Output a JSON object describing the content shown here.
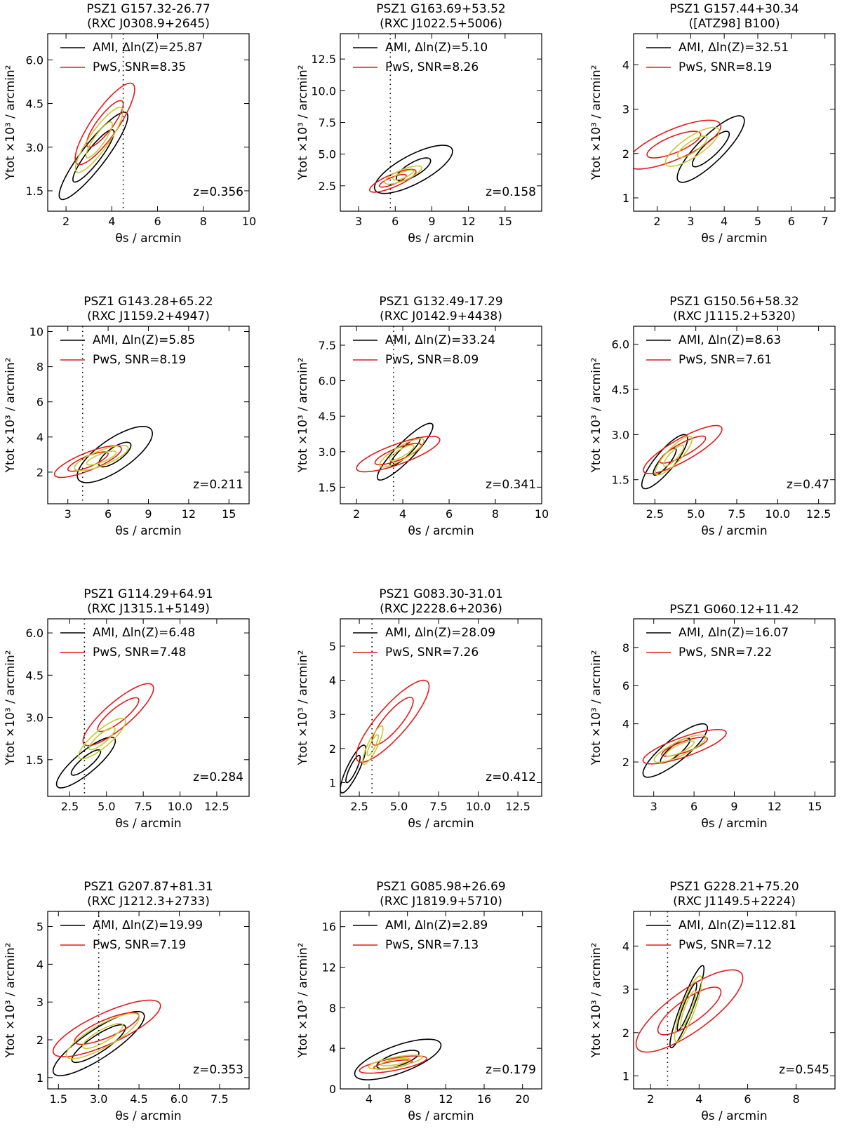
{
  "colors": {
    "ami": "#000000",
    "pws": "#e41a1c",
    "overlap": "#c8c832"
  },
  "chart_data": [
    {
      "type": "contour",
      "title": "PSZ1 G157.32-26.77",
      "subtitle": "(RXC J0308.9+2645)",
      "xlabel": "θs / arcmin",
      "ylabel": "Ytot ×10³ / arcmin²",
      "xlim": [
        1.2,
        10
      ],
      "ylim": [
        0.8,
        6.9
      ],
      "xticks": [
        2,
        4,
        6,
        8,
        10
      ],
      "xtick_labels": [
        "2",
        "4",
        "6",
        "8",
        "10"
      ],
      "yticks": [
        1.5,
        3.0,
        4.5,
        6.0
      ],
      "ytick_labels": [
        "1.5",
        "3.0",
        "4.5",
        "6.0"
      ],
      "legend": [
        "AMI, Δln(Z)=25.87",
        "PwS, SNR=8.35"
      ],
      "redshift": "z=0.356",
      "vline": 4.5,
      "ami": {
        "center": [
          3.2,
          2.7
        ],
        "outer": [
          1.5,
          1.5
        ],
        "inner": [
          0.9,
          0.9
        ],
        "rho": 0.9
      },
      "pws": {
        "center": [
          3.7,
          3.8
        ],
        "outer": [
          1.3,
          1.4
        ],
        "inner": [
          0.8,
          0.8
        ],
        "rho": 0.85
      }
    },
    {
      "type": "contour",
      "title": "PSZ1 G163.69+53.52",
      "subtitle": "(RXC J1022.5+5006)",
      "xlabel": "θs / arcmin",
      "ylabel": "Ytot ×10³ / arcmin²",
      "xlim": [
        1.5,
        18
      ],
      "ylim": [
        0.5,
        14.5
      ],
      "xticks": [
        3,
        6,
        9,
        12,
        15
      ],
      "xtick_labels": [
        "3",
        "6",
        "9",
        "12",
        "15"
      ],
      "yticks": [
        2.5,
        5.0,
        7.5,
        10.0,
        12.5
      ],
      "ytick_labels": [
        "2.5",
        "5.0",
        "7.5",
        "10.0",
        "12.5"
      ],
      "legend": [
        "AMI, Δln(Z)=5.10",
        "PwS, SNR=8.26"
      ],
      "redshift": "z=0.158",
      "vline": 5.6,
      "ami": {
        "center": [
          7.5,
          3.8
        ],
        "outer": [
          3.2,
          1.9
        ],
        "inner": [
          1.4,
          0.9
        ],
        "rho": 0.75
      },
      "pws": {
        "center": [
          5.8,
          2.9
        ],
        "outer": [
          1.9,
          0.9
        ],
        "inner": [
          1.1,
          0.5
        ],
        "rho": 0.8
      }
    },
    {
      "type": "contour",
      "title": "PSZ1 G157.44+30.34",
      "subtitle": "([ATZ98] B100)",
      "xlabel": "θs / arcmin",
      "ylabel": "Ytot ×10³ / arcmin²",
      "xlim": [
        1.3,
        7.3
      ],
      "ylim": [
        0.7,
        4.7
      ],
      "xticks": [
        2,
        3,
        4,
        5,
        6,
        7
      ],
      "xtick_labels": [
        "2",
        "3",
        "4",
        "5",
        "6",
        "7"
      ],
      "yticks": [
        1,
        2,
        3,
        4
      ],
      "ytick_labels": [
        "1",
        "2",
        "3",
        "4"
      ],
      "legend": [
        "AMI, Δln(Z)=32.51",
        "PwS, SNR=8.19"
      ],
      "redshift": "",
      "vline": null,
      "ami": {
        "center": [
          3.6,
          2.1
        ],
        "outer": [
          1.0,
          0.75
        ],
        "inner": [
          0.55,
          0.4
        ],
        "rho": 0.85
      },
      "pws": {
        "center": [
          2.5,
          2.2
        ],
        "outer": [
          1.4,
          0.55
        ],
        "inner": [
          0.8,
          0.3
        ],
        "rho": 0.75
      }
    },
    {
      "type": "contour",
      "title": "PSZ1 G143.28+65.22",
      "subtitle": "(RXC J1159.2+4947)",
      "xlabel": "θs / arcmin",
      "ylabel": "Ytot ×10³ / arcmin²",
      "xlim": [
        1.5,
        16.5
      ],
      "ylim": [
        0.2,
        10.3
      ],
      "xticks": [
        3,
        6,
        9,
        12,
        15
      ],
      "xtick_labels": [
        "3",
        "6",
        "9",
        "12",
        "15"
      ],
      "yticks": [
        2,
        4,
        6,
        8,
        10
      ],
      "ytick_labels": [
        "2",
        "4",
        "6",
        "8",
        "10"
      ],
      "legend": [
        "AMI, Δln(Z)=5.85",
        "PwS, SNR=8.19"
      ],
      "redshift": "z=0.211",
      "vline": 4.1,
      "ami": {
        "center": [
          6.5,
          3.0
        ],
        "outer": [
          2.8,
          1.6
        ],
        "inner": [
          1.2,
          0.7
        ],
        "rho": 0.75
      },
      "pws": {
        "center": [
          4.5,
          2.6
        ],
        "outer": [
          2.5,
          0.9
        ],
        "inner": [
          1.5,
          0.55
        ],
        "rho": 0.8
      }
    },
    {
      "type": "contour",
      "title": "PSZ1 G132.49-17.29",
      "subtitle": "(RXC J0142.9+4438)",
      "xlabel": "θs / arcmin",
      "ylabel": "Ytot ×10³ / arcmin²",
      "xlim": [
        1.3,
        10
      ],
      "ylim": [
        0.8,
        8.3
      ],
      "xticks": [
        2,
        4,
        6,
        8,
        10
      ],
      "xtick_labels": [
        "2",
        "4",
        "6",
        "8",
        "10"
      ],
      "yticks": [
        1.5,
        3.0,
        4.5,
        6.0,
        7.5
      ],
      "ytick_labels": [
        "1.5",
        "3.0",
        "4.5",
        "6.0",
        "7.5"
      ],
      "legend": [
        "AMI, Δln(Z)=33.24",
        "PwS, SNR=8.09"
      ],
      "redshift": "z=0.341",
      "vline": 3.6,
      "ami": {
        "center": [
          4.1,
          3.0
        ],
        "outer": [
          1.2,
          1.2
        ],
        "inner": [
          0.65,
          0.6
        ],
        "rho": 0.9
      },
      "pws": {
        "center": [
          3.8,
          2.9
        ],
        "outer": [
          1.8,
          0.75
        ],
        "inner": [
          1.0,
          0.45
        ],
        "rho": 0.8
      }
    },
    {
      "type": "contour",
      "title": "PSZ1 G150.56+58.32",
      "subtitle": "(RXC J1115.2+5320)",
      "xlabel": "θs / arcmin",
      "ylabel": "Ytot ×10³ / arcmin²",
      "xlim": [
        1.2,
        13.5
      ],
      "ylim": [
        0.7,
        6.6
      ],
      "xticks": [
        2.5,
        5.0,
        7.5,
        10.0,
        12.5
      ],
      "xtick_labels": [
        "2.5",
        "5.0",
        "7.5",
        "10.0",
        "12.5"
      ],
      "yticks": [
        1.5,
        3.0,
        4.5,
        6.0
      ],
      "ytick_labels": [
        "1.5",
        "3.0",
        "4.5",
        "6.0"
      ],
      "legend": [
        "AMI, Δln(Z)=8.63",
        "PwS, SNR=7.61"
      ],
      "redshift": "z=0.47",
      "vline": null,
      "ami": {
        "center": [
          3.1,
          2.1
        ],
        "outer": [
          1.4,
          0.9
        ],
        "inner": [
          0.7,
          0.45
        ],
        "rho": 0.85
      },
      "pws": {
        "center": [
          4.2,
          2.5
        ],
        "outer": [
          2.4,
          0.8
        ],
        "inner": [
          1.4,
          0.45
        ],
        "rho": 0.85
      }
    },
    {
      "type": "contour",
      "title": "PSZ1 G114.29+64.91",
      "subtitle": "(RXC J1315.1+5149)",
      "xlabel": "θs / arcmin",
      "ylabel": "Ytot ×10³ / arcmin²",
      "xlim": [
        1.0,
        14.7
      ],
      "ylim": [
        0.2,
        6.5
      ],
      "xticks": [
        2.5,
        5.0,
        7.5,
        10.0,
        12.5
      ],
      "xtick_labels": [
        "2.5",
        "5.0",
        "7.5",
        "10.0",
        "12.5"
      ],
      "yticks": [
        1.5,
        3.0,
        4.5,
        6.0
      ],
      "ytick_labels": [
        "1.5",
        "3.0",
        "4.5",
        "6.0"
      ],
      "legend": [
        "AMI, Δln(Z)=6.48",
        "PwS, SNR=7.48"
      ],
      "redshift": "z=0.284",
      "vline": 3.5,
      "ami": {
        "center": [
          3.6,
          1.4
        ],
        "outer": [
          2.0,
          0.9
        ],
        "inner": [
          1.0,
          0.45
        ],
        "rho": 0.85
      },
      "pws": {
        "center": [
          5.8,
          3.1
        ],
        "outer": [
          2.4,
          1.1
        ],
        "inner": [
          1.4,
          0.6
        ],
        "rho": 0.85
      }
    },
    {
      "type": "contour",
      "title": "PSZ1 G083.30-31.01",
      "subtitle": "(RXC J2228.6+2036)",
      "xlabel": "θs / arcmin",
      "ylabel": "Ytot ×10³ / arcmin²",
      "xlim": [
        1.3,
        14
      ],
      "ylim": [
        0.6,
        5.8
      ],
      "xticks": [
        2.5,
        5.0,
        7.5,
        10.0,
        12.5
      ],
      "xtick_labels": [
        "2.5",
        "5.0",
        "7.5",
        "10.0",
        "12.5"
      ],
      "yticks": [
        1,
        2,
        3,
        4,
        5
      ],
      "ytick_labels": [
        "1",
        "2",
        "3",
        "4",
        "5"
      ],
      "legend": [
        "AMI, Δln(Z)=28.09",
        "PwS, SNR=7.26"
      ],
      "redshift": "z=0.412",
      "vline": 3.3,
      "ami": {
        "center": [
          2.1,
          1.4
        ],
        "outer": [
          0.8,
          0.7
        ],
        "inner": [
          0.45,
          0.4
        ],
        "rho": 0.85
      },
      "pws": {
        "center": [
          4.6,
          2.8
        ],
        "outer": [
          2.3,
          1.2
        ],
        "inner": [
          1.3,
          0.7
        ],
        "rho": 0.85
      }
    },
    {
      "type": "contour",
      "title": "PSZ1 G060.12+11.42",
      "subtitle": "",
      "xlabel": "θs / arcmin",
      "ylabel": "Ytot ×10³ / arcmin²",
      "xlim": [
        1.5,
        16.5
      ],
      "ylim": [
        0.2,
        9.5
      ],
      "xticks": [
        3,
        6,
        9,
        12,
        15
      ],
      "xtick_labels": [
        "3",
        "6",
        "9",
        "12",
        "15"
      ],
      "yticks": [
        2,
        4,
        6,
        8
      ],
      "ytick_labels": [
        "2",
        "4",
        "6",
        "8"
      ],
      "legend": [
        "AMI, Δln(Z)=16.07",
        "PwS, SNR=7.22"
      ],
      "redshift": "",
      "vline": null,
      "ami": {
        "center": [
          4.6,
          2.6
        ],
        "outer": [
          2.4,
          1.4
        ],
        "inner": [
          1.1,
          0.65
        ],
        "rho": 0.85
      },
      "pws": {
        "center": [
          5.3,
          2.8
        ],
        "outer": [
          3.1,
          0.9
        ],
        "inner": [
          1.7,
          0.5
        ],
        "rho": 0.8
      }
    },
    {
      "type": "contour",
      "title": "PSZ1 G207.87+81.31",
      "subtitle": "(RXC J1212.3+2733)",
      "xlabel": "θs / arcmin",
      "ylabel": "Ytot ×10³ / arcmin²",
      "xlim": [
        1.1,
        8.6
      ],
      "ylim": [
        0.7,
        5.4
      ],
      "xticks": [
        1.5,
        3.0,
        4.5,
        6.0,
        7.5
      ],
      "xtick_labels": [
        "1.5",
        "3.0",
        "4.5",
        "6.0",
        "7.5"
      ],
      "yticks": [
        1,
        2,
        3,
        4,
        5
      ],
      "ytick_labels": [
        "1",
        "2",
        "3",
        "4",
        "5"
      ],
      "legend": [
        "AMI, Δln(Z)=19.99",
        "PwS, SNR=7.19"
      ],
      "redshift": "z=0.353",
      "vline": 3.0,
      "ami": {
        "center": [
          3.0,
          1.9
        ],
        "outer": [
          1.7,
          0.85
        ],
        "inner": [
          1.0,
          0.5
        ],
        "rho": 0.85
      },
      "pws": {
        "center": [
          3.3,
          2.3
        ],
        "outer": [
          2.0,
          0.75
        ],
        "inner": [
          1.2,
          0.42
        ],
        "rho": 0.8
      }
    },
    {
      "type": "contour",
      "title": "PSZ1 G085.98+26.69",
      "subtitle": "(RXC J1819.9+5710)",
      "xlabel": "θs / arcmin",
      "ylabel": "Ytot ×10³ / arcmin²",
      "xlim": [
        1.0,
        22
      ],
      "ylim": [
        0,
        17.5
      ],
      "xticks": [
        4,
        8,
        12,
        16,
        20
      ],
      "xtick_labels": [
        "4",
        "8",
        "12",
        "16",
        "20"
      ],
      "yticks": [
        0,
        4,
        8,
        12,
        16
      ],
      "ytick_labels": [
        "0",
        "4",
        "8",
        "12",
        "16"
      ],
      "legend": [
        "AMI, Δln(Z)=2.89",
        "PwS, SNR=7.13"
      ],
      "redshift": "z=0.179",
      "vline": null,
      "ami": {
        "center": [
          7.0,
          2.9
        ],
        "outer": [
          4.5,
          2.0
        ],
        "inner": [
          2.2,
          0.9
        ],
        "rho": 0.7
      },
      "pws": {
        "center": [
          6.5,
          2.4
        ],
        "outer": [
          3.5,
          0.85
        ],
        "inner": [
          2.0,
          0.45
        ],
        "rho": 0.7
      }
    },
    {
      "type": "contour",
      "title": "PSZ1 G228.21+75.20",
      "subtitle": "(RXC J1149.5+2224)",
      "xlabel": "θs / arcmin",
      "ylabel": "Ytot ×10³ / arcmin²",
      "xlim": [
        1.3,
        9.6
      ],
      "ylim": [
        0.7,
        4.8
      ],
      "xticks": [
        2,
        4,
        6,
        8
      ],
      "xtick_labels": [
        "2",
        "4",
        "6",
        "8"
      ],
      "yticks": [
        1,
        2,
        3,
        4
      ],
      "ytick_labels": [
        "1",
        "2",
        "3",
        "4"
      ],
      "legend": [
        "AMI, Δln(Z)=112.81",
        "PwS, SNR=7.12"
      ],
      "redshift": "z=0.545",
      "vline": 2.7,
      "ami": {
        "center": [
          3.5,
          2.6
        ],
        "outer": [
          0.7,
          0.95
        ],
        "inner": [
          0.4,
          0.55
        ],
        "rho": 0.92
      },
      "pws": {
        "center": [
          3.6,
          2.5
        ],
        "outer": [
          2.2,
          0.95
        ],
        "inner": [
          1.3,
          0.55
        ],
        "rho": 0.8
      }
    }
  ]
}
